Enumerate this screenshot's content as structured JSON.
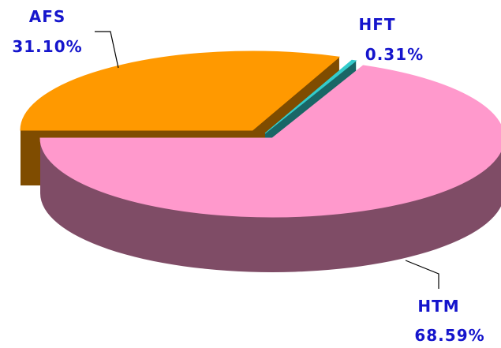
{
  "chart_data": {
    "type": "pie3d",
    "categories": [
      "AFS",
      "HFT",
      "HTM"
    ],
    "values": [
      31.1,
      0.31,
      68.59
    ],
    "value_labels": [
      "31.10%",
      "0.31%",
      "68.59%"
    ],
    "colors": [
      "#FF9900",
      "#33CCCC",
      "#FF99CC"
    ]
  }
}
